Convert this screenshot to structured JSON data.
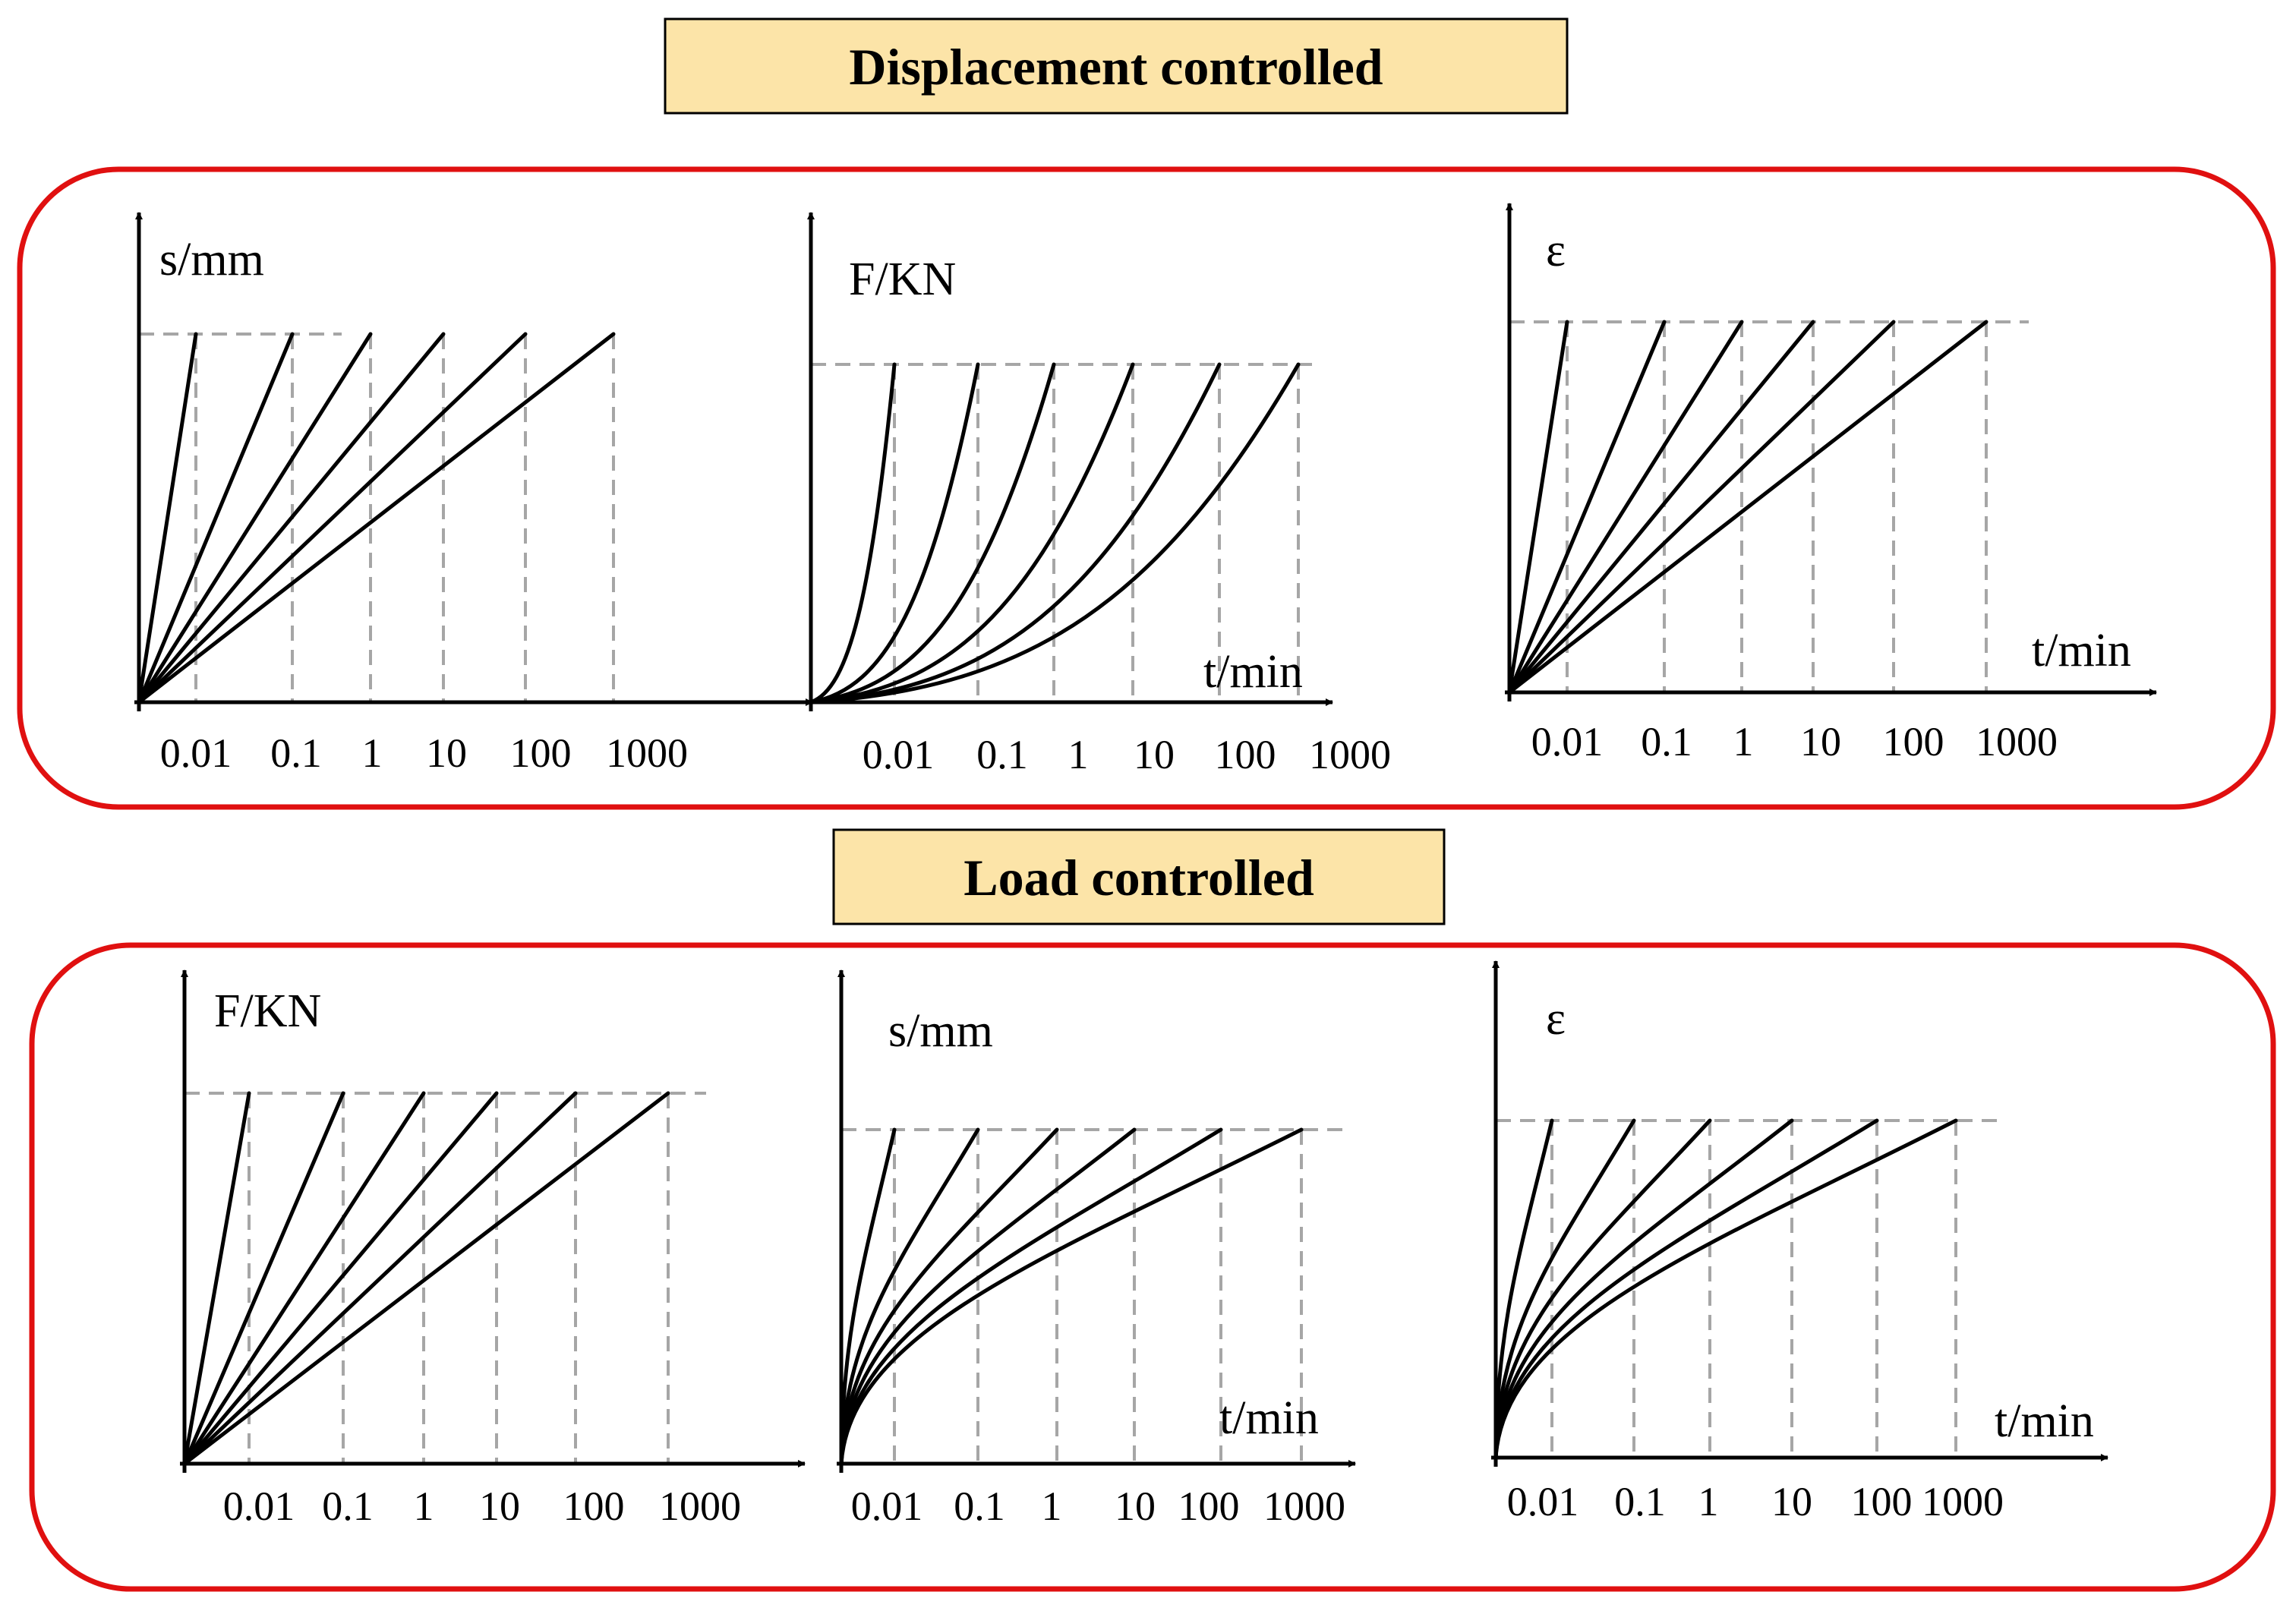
{
  "colors": {
    "title_box_fill": "#FCE4A8",
    "panel_border": "#E01010",
    "curve": "#000000",
    "guide": "#A6A6A6"
  },
  "sections": [
    {
      "title": "Displacement  controlled",
      "plots": [
        {
          "ylabel": "s/mm",
          "xlabel": "",
          "shape": "linear",
          "tick_labels": [
            "0.01",
            "0.1",
            "1",
            "10",
            "100",
            "1000"
          ]
        },
        {
          "ylabel": "F/KN",
          "xlabel": "t/min",
          "shape": "convex",
          "tick_labels": [
            "0.01",
            "0.1",
            "1",
            "10",
            "100",
            "1000"
          ]
        },
        {
          "ylabel": "ε",
          "xlabel": "t/min",
          "shape": "linear",
          "tick_labels": [
            "0.01",
            "0.1",
            "1",
            "10",
            "100",
            "1000"
          ]
        }
      ]
    },
    {
      "title": "Load  controlled",
      "plots": [
        {
          "ylabel": "F/KN",
          "xlabel": "",
          "shape": "linear",
          "tick_labels": [
            "0.01",
            "0.1",
            "1",
            "10",
            "100",
            "1000"
          ]
        },
        {
          "ylabel": "s/mm",
          "xlabel": "t/min",
          "shape": "concave",
          "tick_labels": [
            "0.01",
            "0.1",
            "1",
            "10",
            "100",
            "1000"
          ]
        },
        {
          "ylabel": "ε",
          "xlabel": "t/min",
          "shape": "concave",
          "tick_labels": [
            "0.01",
            "0.1",
            "1",
            "10",
            "100",
            "1000"
          ]
        }
      ]
    }
  ]
}
